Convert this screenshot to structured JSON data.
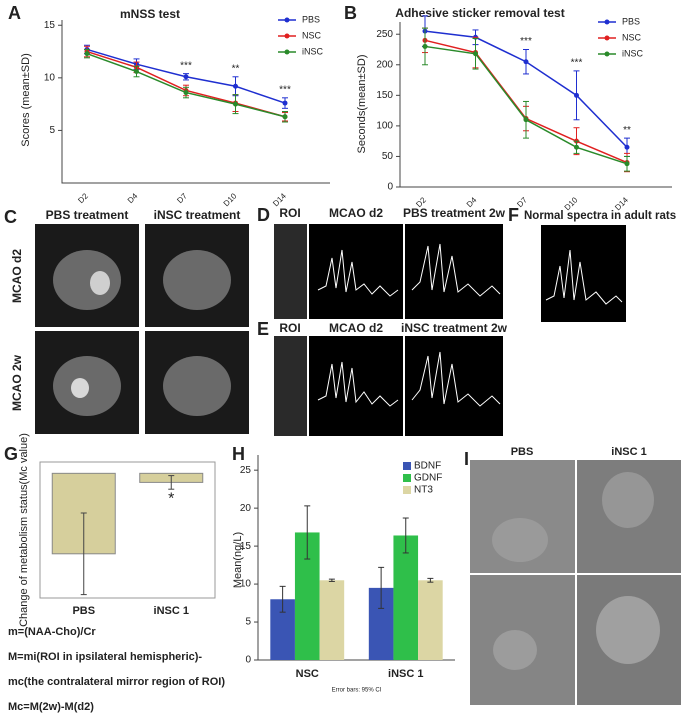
{
  "chart_data": [
    {
      "type": "line",
      "panel": "A",
      "title": "mNSS test",
      "y_label": "Scores (mean±SD)",
      "categories": [
        "D2",
        "D4",
        "D7",
        "D10",
        "D14"
      ],
      "series": [
        {
          "name": "PBS",
          "color": "#1f2fd0",
          "values": [
            12.7,
            11.3,
            10.1,
            9.2,
            7.6
          ],
          "errors": [
            0.4,
            0.5,
            0.3,
            0.9,
            0.5
          ]
        },
        {
          "name": "NSC",
          "color": "#e02020",
          "values": [
            12.5,
            11.0,
            8.8,
            7.6,
            6.3
          ],
          "errors": [
            0.5,
            0.5,
            0.5,
            0.8,
            0.4
          ]
        },
        {
          "name": "iNSC",
          "color": "#2a8a2a",
          "values": [
            12.3,
            10.6,
            8.6,
            7.5,
            6.3
          ],
          "errors": [
            0.4,
            0.5,
            0.5,
            0.9,
            0.5
          ]
        }
      ],
      "ylim": [
        0,
        15.5
      ],
      "yticks": [
        5,
        10,
        15
      ],
      "legend": "top-right",
      "annotations": [
        {
          "text": "***",
          "x": "D7"
        },
        {
          "text": "**",
          "x": "D10"
        },
        {
          "text": "***",
          "x": "D14"
        }
      ]
    },
    {
      "type": "line",
      "panel": "B",
      "title": "Adhesive sticker removal test",
      "y_label": "Seconds(mean±SD)",
      "categories": [
        "D2",
        "D4",
        "D7",
        "D10",
        "D14"
      ],
      "series": [
        {
          "name": "PBS",
          "color": "#1f2fd0",
          "values": [
            255,
            245,
            205,
            150,
            65
          ],
          "errors": [
            25,
            12,
            20,
            40,
            15
          ]
        },
        {
          "name": "NSC",
          "color": "#e02020",
          "values": [
            240,
            220,
            112,
            75,
            40
          ],
          "errors": [
            20,
            25,
            20,
            22,
            15
          ]
        },
        {
          "name": "iNSC",
          "color": "#2a8a2a",
          "values": [
            230,
            218,
            110,
            65,
            38
          ],
          "errors": [
            30,
            25,
            30,
            10,
            12
          ]
        }
      ],
      "ylim": [
        0,
        270
      ],
      "yticks": [
        0,
        50,
        100,
        150,
        200,
        250
      ],
      "legend": "top-right",
      "annotations": [
        {
          "text": "***",
          "x": "D7"
        },
        {
          "text": "***",
          "x": "D10"
        },
        {
          "text": "**",
          "x": "D14"
        }
      ]
    },
    {
      "type": "bar",
      "panel": "G",
      "y_label": "Change of metabolism status(Mc value)",
      "categories": [
        "PBS",
        "iNSC 1"
      ],
      "values": [
        -0.71,
        -0.08
      ],
      "errors": [
        0.36,
        0.06
      ],
      "color": "#d6cf9c",
      "ylim": [
        -1.1,
        0.1
      ],
      "annotations": [
        {
          "text": "*",
          "x": "iNSC 1"
        }
      ],
      "notes": [
        "m=(NAA-Cho)/Cr",
        "M=mi(ROI in ipsilateral hemispheric)-",
        "mc(the contralateral mirror region of ROI)",
        "Mc=M(2w)-M(d2)"
      ]
    },
    {
      "type": "grouped_bar",
      "panel": "H",
      "y_label": "Mean(ng/L)",
      "categories": [
        "NSC",
        "iNSC 1"
      ],
      "series": [
        {
          "name": "BDNF",
          "color": "#3a55b4",
          "values": [
            8.0,
            9.5
          ],
          "errors": [
            1.7,
            2.7
          ]
        },
        {
          "name": "GDNF",
          "color": "#2fbf4a",
          "values": [
            16.8,
            16.4
          ],
          "errors": [
            3.5,
            2.3
          ]
        },
        {
          "name": "NT3",
          "color": "#dcd6a4",
          "values": [
            10.5,
            10.5
          ],
          "errors": [
            0.15,
            0.25
          ]
        }
      ],
      "ylim": [
        0,
        27
      ],
      "yticks": [
        0,
        5,
        10,
        15,
        20,
        25
      ],
      "legend": "top-right",
      "footnote": "Error bars: 95% CI"
    }
  ],
  "images": {
    "C": {
      "panel": "C",
      "columns": [
        "PBS treatment",
        "iNSC treatment"
      ],
      "rows": [
        "MCAO d2",
        "MCAO 2w"
      ]
    },
    "D": {
      "panel": "D",
      "titles": [
        "ROI",
        "MCAO d2",
        "PBS treatment 2w"
      ]
    },
    "E": {
      "panel": "E",
      "titles": [
        "ROI",
        "MCAO d2",
        "iNSC treatment 2w"
      ]
    },
    "F": {
      "panel": "F",
      "title": "Normal spectra in adult rats"
    },
    "I": {
      "panel": "I",
      "columns": [
        "PBS",
        "iNSC 1"
      ]
    }
  }
}
